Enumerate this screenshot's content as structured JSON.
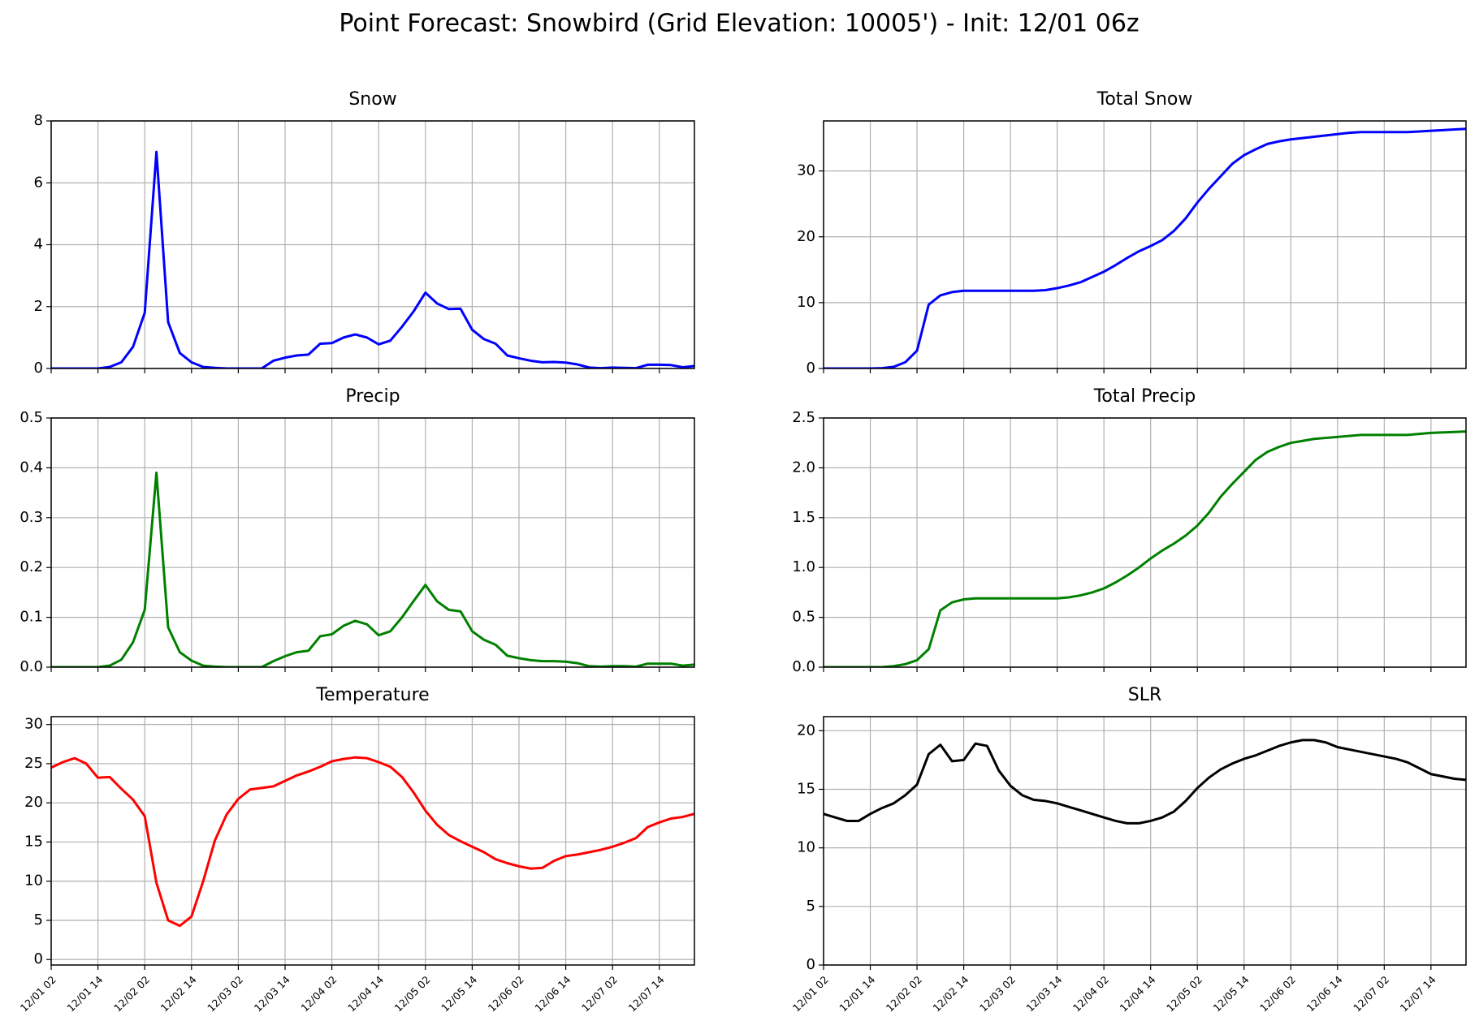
{
  "title": "Point Forecast: Snowbird (Grid Elevation: 10005') - Init: 12/01 06z",
  "chart_data": [
    {
      "type": "line",
      "title": "Snow",
      "color": "#0000ff",
      "grid": true,
      "x": [
        "12/01 02",
        "12/01 05",
        "12/01 08",
        "12/01 11",
        "12/01 14",
        "12/01 17",
        "12/01 20",
        "12/01 23",
        "12/02 02",
        "12/02 05",
        "12/02 08",
        "12/02 11",
        "12/02 14",
        "12/02 17",
        "12/02 20",
        "12/02 23",
        "12/03 02",
        "12/03 05",
        "12/03 08",
        "12/03 11",
        "12/03 14",
        "12/03 17",
        "12/03 20",
        "12/03 23",
        "12/04 02",
        "12/04 05",
        "12/04 08",
        "12/04 11",
        "12/04 14",
        "12/04 17",
        "12/04 20",
        "12/04 23",
        "12/05 02",
        "12/05 05",
        "12/05 08",
        "12/05 11",
        "12/05 14",
        "12/05 17",
        "12/05 20",
        "12/05 23",
        "12/06 02",
        "12/06 05",
        "12/06 08",
        "12/06 11",
        "12/06 14",
        "12/06 17",
        "12/06 20",
        "12/06 23",
        "12/07 02",
        "12/07 05",
        "12/07 08",
        "12/07 11",
        "12/07 14",
        "12/07 17",
        "12/07 20",
        "12/07 23"
      ],
      "values": [
        0,
        0,
        0,
        0,
        0,
        0.05,
        0.2,
        0.7,
        1.8,
        7.0,
        1.5,
        0.5,
        0.2,
        0.05,
        0.02,
        0,
        0,
        0,
        0,
        0.25,
        0.35,
        0.42,
        0.45,
        0.8,
        0.82,
        1.0,
        1.1,
        1.0,
        0.78,
        0.9,
        1.35,
        1.85,
        2.45,
        2.1,
        1.92,
        1.93,
        1.25,
        0.95,
        0.8,
        0.42,
        0.33,
        0.25,
        0.2,
        0.21,
        0.19,
        0.13,
        0.03,
        0.01,
        0.03,
        0.02,
        0.01,
        0.12,
        0.12,
        0.11,
        0.04,
        0.08
      ],
      "xlim": [
        "12/01 02",
        "12/07 23"
      ],
      "xticks": [
        "12/01 02",
        "12/01 14",
        "12/02 02",
        "12/02 14",
        "12/03 02",
        "12/03 14",
        "12/04 02",
        "12/04 14",
        "12/05 02",
        "12/05 14",
        "12/06 02",
        "12/06 14",
        "12/07 02",
        "12/07 14"
      ],
      "ylim": [
        0,
        8
      ],
      "yticks": [
        0,
        2,
        4,
        6,
        8
      ]
    },
    {
      "type": "line",
      "title": "Total Snow",
      "color": "#0000ff",
      "grid": true,
      "x": [
        "12/01 02",
        "12/01 05",
        "12/01 08",
        "12/01 11",
        "12/01 14",
        "12/01 17",
        "12/01 20",
        "12/01 23",
        "12/02 02",
        "12/02 05",
        "12/02 08",
        "12/02 11",
        "12/02 14",
        "12/02 17",
        "12/02 20",
        "12/02 23",
        "12/03 02",
        "12/03 05",
        "12/03 08",
        "12/03 11",
        "12/03 14",
        "12/03 17",
        "12/03 20",
        "12/03 23",
        "12/04 02",
        "12/04 05",
        "12/04 08",
        "12/04 11",
        "12/04 14",
        "12/04 17",
        "12/04 20",
        "12/04 23",
        "12/05 02",
        "12/05 05",
        "12/05 08",
        "12/05 11",
        "12/05 14",
        "12/05 17",
        "12/05 20",
        "12/05 23",
        "12/06 02",
        "12/06 05",
        "12/06 08",
        "12/06 11",
        "12/06 14",
        "12/06 17",
        "12/06 20",
        "12/06 23",
        "12/07 02",
        "12/07 05",
        "12/07 08",
        "12/07 11",
        "12/07 14",
        "12/07 17",
        "12/07 20",
        "12/07 23"
      ],
      "values": [
        0,
        0,
        0,
        0,
        0,
        0.05,
        0.25,
        0.95,
        2.7,
        9.7,
        11.1,
        11.6,
        11.8,
        11.8,
        11.8,
        11.8,
        11.8,
        11.8,
        11.8,
        11.9,
        12.2,
        12.6,
        13.1,
        13.9,
        14.7,
        15.7,
        16.8,
        17.8,
        18.6,
        19.5,
        20.9,
        22.8,
        25.2,
        27.3,
        29.2,
        31.1,
        32.4,
        33.3,
        34.1,
        34.5,
        34.8,
        35.0,
        35.2,
        35.4,
        35.6,
        35.8,
        35.9,
        35.9,
        35.9,
        35.9,
        35.9,
        36.0,
        36.1,
        36.2,
        36.3,
        36.4
      ],
      "xlim": [
        "12/01 02",
        "12/07 23"
      ],
      "xticks": [
        "12/01 02",
        "12/01 14",
        "12/02 02",
        "12/02 14",
        "12/03 02",
        "12/03 14",
        "12/04 02",
        "12/04 14",
        "12/05 02",
        "12/05 14",
        "12/06 02",
        "12/06 14",
        "12/07 02",
        "12/07 14"
      ],
      "ylim": [
        0,
        37.6
      ],
      "yticks": [
        0,
        10,
        20,
        30
      ]
    },
    {
      "type": "line",
      "title": "Precip",
      "color": "#008000",
      "grid": true,
      "x": [
        "12/01 02",
        "12/01 05",
        "12/01 08",
        "12/01 11",
        "12/01 14",
        "12/01 17",
        "12/01 20",
        "12/01 23",
        "12/02 02",
        "12/02 05",
        "12/02 08",
        "12/02 11",
        "12/02 14",
        "12/02 17",
        "12/02 20",
        "12/02 23",
        "12/03 02",
        "12/03 05",
        "12/03 08",
        "12/03 11",
        "12/03 14",
        "12/03 17",
        "12/03 20",
        "12/03 23",
        "12/04 02",
        "12/04 05",
        "12/04 08",
        "12/04 11",
        "12/04 14",
        "12/04 17",
        "12/04 20",
        "12/04 23",
        "12/05 02",
        "12/05 05",
        "12/05 08",
        "12/05 11",
        "12/05 14",
        "12/05 17",
        "12/05 20",
        "12/05 23",
        "12/06 02",
        "12/06 05",
        "12/06 08",
        "12/06 11",
        "12/06 14",
        "12/06 17",
        "12/06 20",
        "12/06 23",
        "12/07 02",
        "12/07 05",
        "12/07 08",
        "12/07 11",
        "12/07 14",
        "12/07 17",
        "12/07 20",
        "12/07 23"
      ],
      "values": [
        0,
        0,
        0,
        0,
        0,
        0.003,
        0.015,
        0.05,
        0.115,
        0.39,
        0.08,
        0.03,
        0.013,
        0.003,
        0.001,
        0,
        0,
        0,
        0,
        0.012,
        0.022,
        0.03,
        0.033,
        0.062,
        0.066,
        0.083,
        0.093,
        0.086,
        0.064,
        0.072,
        0.1,
        0.133,
        0.165,
        0.132,
        0.115,
        0.112,
        0.072,
        0.055,
        0.045,
        0.023,
        0.018,
        0.014,
        0.012,
        0.012,
        0.011,
        0.008,
        0.002,
        0.001,
        0.002,
        0.002,
        0.001,
        0.007,
        0.007,
        0.007,
        0.003,
        0.005
      ],
      "xlim": [
        "12/01 02",
        "12/07 23"
      ],
      "xticks": [
        "12/01 02",
        "12/01 14",
        "12/02 02",
        "12/02 14",
        "12/03 02",
        "12/03 14",
        "12/04 02",
        "12/04 14",
        "12/05 02",
        "12/05 14",
        "12/06 02",
        "12/06 14",
        "12/07 02",
        "12/07 14"
      ],
      "ylim": [
        0,
        0.5
      ],
      "yticks": [
        {
          "value": 0,
          "label": "0.0"
        },
        0.1,
        0.2,
        0.3,
        0.4,
        0.5
      ]
    },
    {
      "type": "line",
      "title": "Total Precip",
      "color": "#008000",
      "grid": true,
      "x": [
        "12/01 02",
        "12/01 05",
        "12/01 08",
        "12/01 11",
        "12/01 14",
        "12/01 17",
        "12/01 20",
        "12/01 23",
        "12/02 02",
        "12/02 05",
        "12/02 08",
        "12/02 11",
        "12/02 14",
        "12/02 17",
        "12/02 20",
        "12/02 23",
        "12/03 02",
        "12/03 05",
        "12/03 08",
        "12/03 11",
        "12/03 14",
        "12/03 17",
        "12/03 20",
        "12/03 23",
        "12/04 02",
        "12/04 05",
        "12/04 08",
        "12/04 11",
        "12/04 14",
        "12/04 17",
        "12/04 20",
        "12/04 23",
        "12/05 02",
        "12/05 05",
        "12/05 08",
        "12/05 11",
        "12/05 14",
        "12/05 17",
        "12/05 20",
        "12/05 23",
        "12/06 02",
        "12/06 05",
        "12/06 08",
        "12/06 11",
        "12/06 14",
        "12/06 17",
        "12/06 20",
        "12/06 23",
        "12/07 02",
        "12/07 05",
        "12/07 08",
        "12/07 11",
        "12/07 14",
        "12/07 17",
        "12/07 20",
        "12/07 23"
      ],
      "values": [
        0,
        0,
        0,
        0,
        0,
        0,
        0.01,
        0.03,
        0.07,
        0.18,
        0.57,
        0.65,
        0.68,
        0.69,
        0.69,
        0.69,
        0.69,
        0.69,
        0.69,
        0.69,
        0.69,
        0.7,
        0.72,
        0.75,
        0.79,
        0.85,
        0.92,
        1.0,
        1.09,
        1.17,
        1.24,
        1.32,
        1.42,
        1.55,
        1.71,
        1.84,
        1.96,
        2.08,
        2.16,
        2.21,
        2.25,
        2.27,
        2.29,
        2.3,
        2.31,
        2.32,
        2.33,
        2.33,
        2.33,
        2.33,
        2.33,
        2.34,
        2.35,
        2.355,
        2.36,
        2.365
      ],
      "xlim": [
        "12/01 02",
        "12/07 23"
      ],
      "xticks": [
        "12/01 02",
        "12/01 14",
        "12/02 02",
        "12/02 14",
        "12/03 02",
        "12/03 14",
        "12/04 02",
        "12/04 14",
        "12/05 02",
        "12/05 14",
        "12/06 02",
        "12/06 14",
        "12/07 02",
        "12/07 14"
      ],
      "ylim": [
        0,
        2.5
      ],
      "yticks": [
        {
          "value": 0,
          "label": "0.0"
        },
        0.5,
        {
          "value": 1,
          "label": "1.0"
        },
        1.5,
        {
          "value": 2,
          "label": "2.0"
        },
        2.5
      ]
    },
    {
      "type": "line",
      "title": "Temperature",
      "color": "#ff0000",
      "grid": true,
      "x": [
        "12/01 02",
        "12/01 05",
        "12/01 08",
        "12/01 11",
        "12/01 14",
        "12/01 17",
        "12/01 20",
        "12/01 23",
        "12/02 02",
        "12/02 05",
        "12/02 08",
        "12/02 11",
        "12/02 14",
        "12/02 17",
        "12/02 20",
        "12/02 23",
        "12/03 02",
        "12/03 05",
        "12/03 08",
        "12/03 11",
        "12/03 14",
        "12/03 17",
        "12/03 20",
        "12/03 23",
        "12/04 02",
        "12/04 05",
        "12/04 08",
        "12/04 11",
        "12/04 14",
        "12/04 17",
        "12/04 20",
        "12/04 23",
        "12/05 02",
        "12/05 05",
        "12/05 08",
        "12/05 11",
        "12/05 14",
        "12/05 17",
        "12/05 20",
        "12/05 23",
        "12/06 02",
        "12/06 05",
        "12/06 08",
        "12/06 11",
        "12/06 14",
        "12/06 17",
        "12/06 20",
        "12/06 23",
        "12/07 02",
        "12/07 05",
        "12/07 08",
        "12/07 11",
        "12/07 14",
        "12/07 17",
        "12/07 20",
        "12/07 23"
      ],
      "values": [
        24.5,
        25.2,
        25.7,
        25.0,
        23.2,
        23.3,
        21.8,
        20.4,
        18.3,
        9.8,
        5.0,
        4.3,
        5.5,
        10.0,
        15.2,
        18.5,
        20.5,
        21.7,
        21.9,
        22.1,
        22.8,
        23.5,
        24.0,
        24.6,
        25.3,
        25.6,
        25.8,
        25.7,
        25.2,
        24.6,
        23.3,
        21.3,
        19.0,
        17.2,
        15.9,
        15.1,
        14.4,
        13.7,
        12.8,
        12.3,
        11.9,
        11.6,
        11.7,
        12.6,
        13.2,
        13.4,
        13.7,
        14.0,
        14.4,
        14.9,
        15.5,
        16.9,
        17.5,
        18.0,
        18.2,
        18.6
      ],
      "xlim": [
        "12/01 02",
        "12/07 23"
      ],
      "xticks": [
        "12/01 02",
        "12/01 14",
        "12/02 02",
        "12/02 14",
        "12/03 02",
        "12/03 14",
        "12/04 02",
        "12/04 14",
        "12/05 02",
        "12/05 14",
        "12/06 02",
        "12/06 14",
        "12/07 02",
        "12/07 14"
      ],
      "ylim": [
        -0.7,
        31
      ],
      "yticks": [
        0,
        5,
        10,
        15,
        20,
        25,
        30
      ]
    },
    {
      "type": "line",
      "title": "SLR",
      "color": "#000000",
      "grid": true,
      "x": [
        "12/01 02",
        "12/01 05",
        "12/01 08",
        "12/01 11",
        "12/01 14",
        "12/01 17",
        "12/01 20",
        "12/01 23",
        "12/02 02",
        "12/02 05",
        "12/02 08",
        "12/02 11",
        "12/02 14",
        "12/02 17",
        "12/02 20",
        "12/02 23",
        "12/03 02",
        "12/03 05",
        "12/03 08",
        "12/03 11",
        "12/03 14",
        "12/03 17",
        "12/03 20",
        "12/03 23",
        "12/04 02",
        "12/04 05",
        "12/04 08",
        "12/04 11",
        "12/04 14",
        "12/04 17",
        "12/04 20",
        "12/04 23",
        "12/05 02",
        "12/05 05",
        "12/05 08",
        "12/05 11",
        "12/05 14",
        "12/05 17",
        "12/05 20",
        "12/05 23",
        "12/06 02",
        "12/06 05",
        "12/06 08",
        "12/06 11",
        "12/06 14",
        "12/06 17",
        "12/06 20",
        "12/06 23",
        "12/07 02",
        "12/07 05",
        "12/07 08",
        "12/07 11",
        "12/07 14",
        "12/07 17",
        "12/07 20",
        "12/07 23"
      ],
      "values": [
        12.9,
        12.6,
        12.3,
        12.3,
        12.9,
        13.4,
        13.8,
        14.5,
        15.4,
        18.0,
        18.8,
        17.4,
        17.5,
        18.9,
        18.7,
        16.6,
        15.3,
        14.5,
        14.1,
        14.0,
        13.8,
        13.5,
        13.2,
        12.9,
        12.6,
        12.3,
        12.1,
        12.1,
        12.3,
        12.6,
        13.1,
        14.0,
        15.1,
        16.0,
        16.7,
        17.2,
        17.6,
        17.9,
        18.3,
        18.7,
        19.0,
        19.2,
        19.2,
        19.0,
        18.6,
        18.4,
        18.2,
        18.0,
        17.8,
        17.6,
        17.3,
        16.8,
        16.3,
        16.1,
        15.9,
        15.8
      ],
      "xlim": [
        "12/01 02",
        "12/07 23"
      ],
      "xticks": [
        "12/01 02",
        "12/01 14",
        "12/02 02",
        "12/02 14",
        "12/03 02",
        "12/03 14",
        "12/04 02",
        "12/04 14",
        "12/05 02",
        "12/05 14",
        "12/06 02",
        "12/06 14",
        "12/07 02",
        "12/07 14"
      ],
      "ylim": [
        0,
        21.2
      ],
      "yticks": [
        0,
        5,
        10,
        15,
        20
      ]
    }
  ]
}
